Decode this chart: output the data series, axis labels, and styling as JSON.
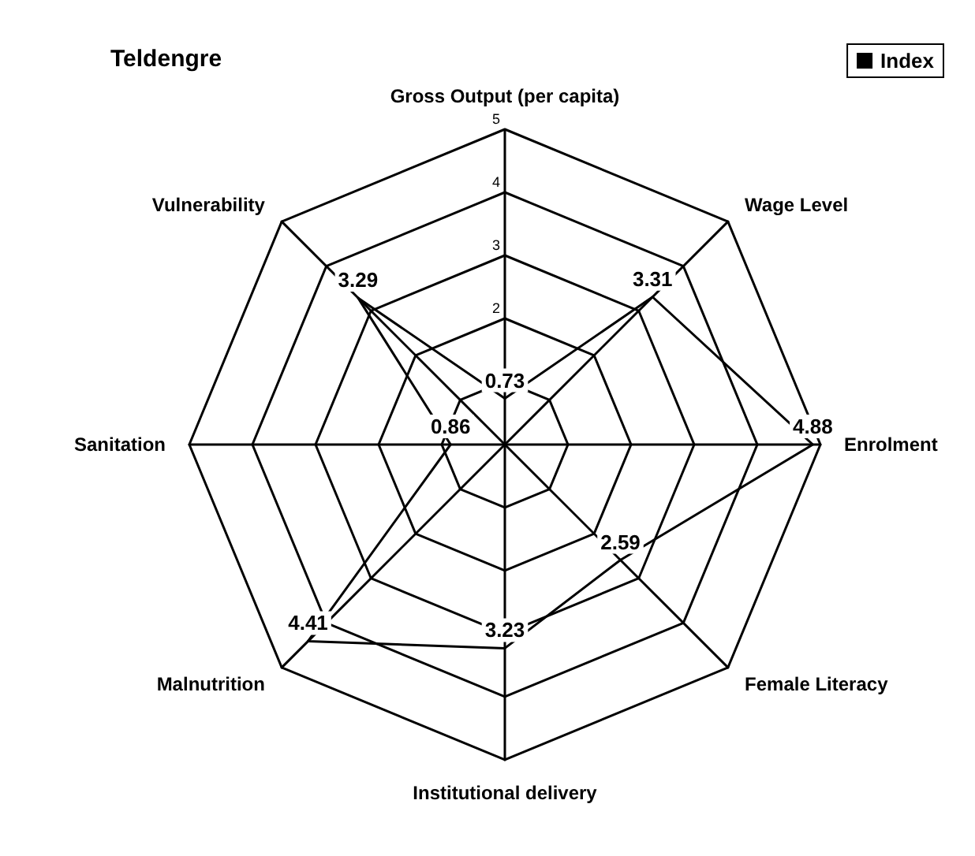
{
  "chart_data": {
    "type": "radar",
    "title": "Teldengre",
    "categories": [
      "Gross Output (per capita)",
      "Wage Level",
      "Enrolment",
      "Female Literacy",
      "Institutional delivery",
      "Malnutrition",
      "Sanitation",
      "Vulnerability"
    ],
    "series": [
      {
        "name": "Index",
        "color": "#000000",
        "values": [
          0.73,
          3.31,
          4.88,
          2.59,
          3.23,
          4.41,
          0.86,
          3.29
        ]
      }
    ],
    "ylim": [
      0,
      5
    ],
    "yticks": [
      2,
      3,
      4,
      5
    ],
    "data_labels": true,
    "legend": "top right",
    "marker": "none",
    "line_style": "solid"
  }
}
